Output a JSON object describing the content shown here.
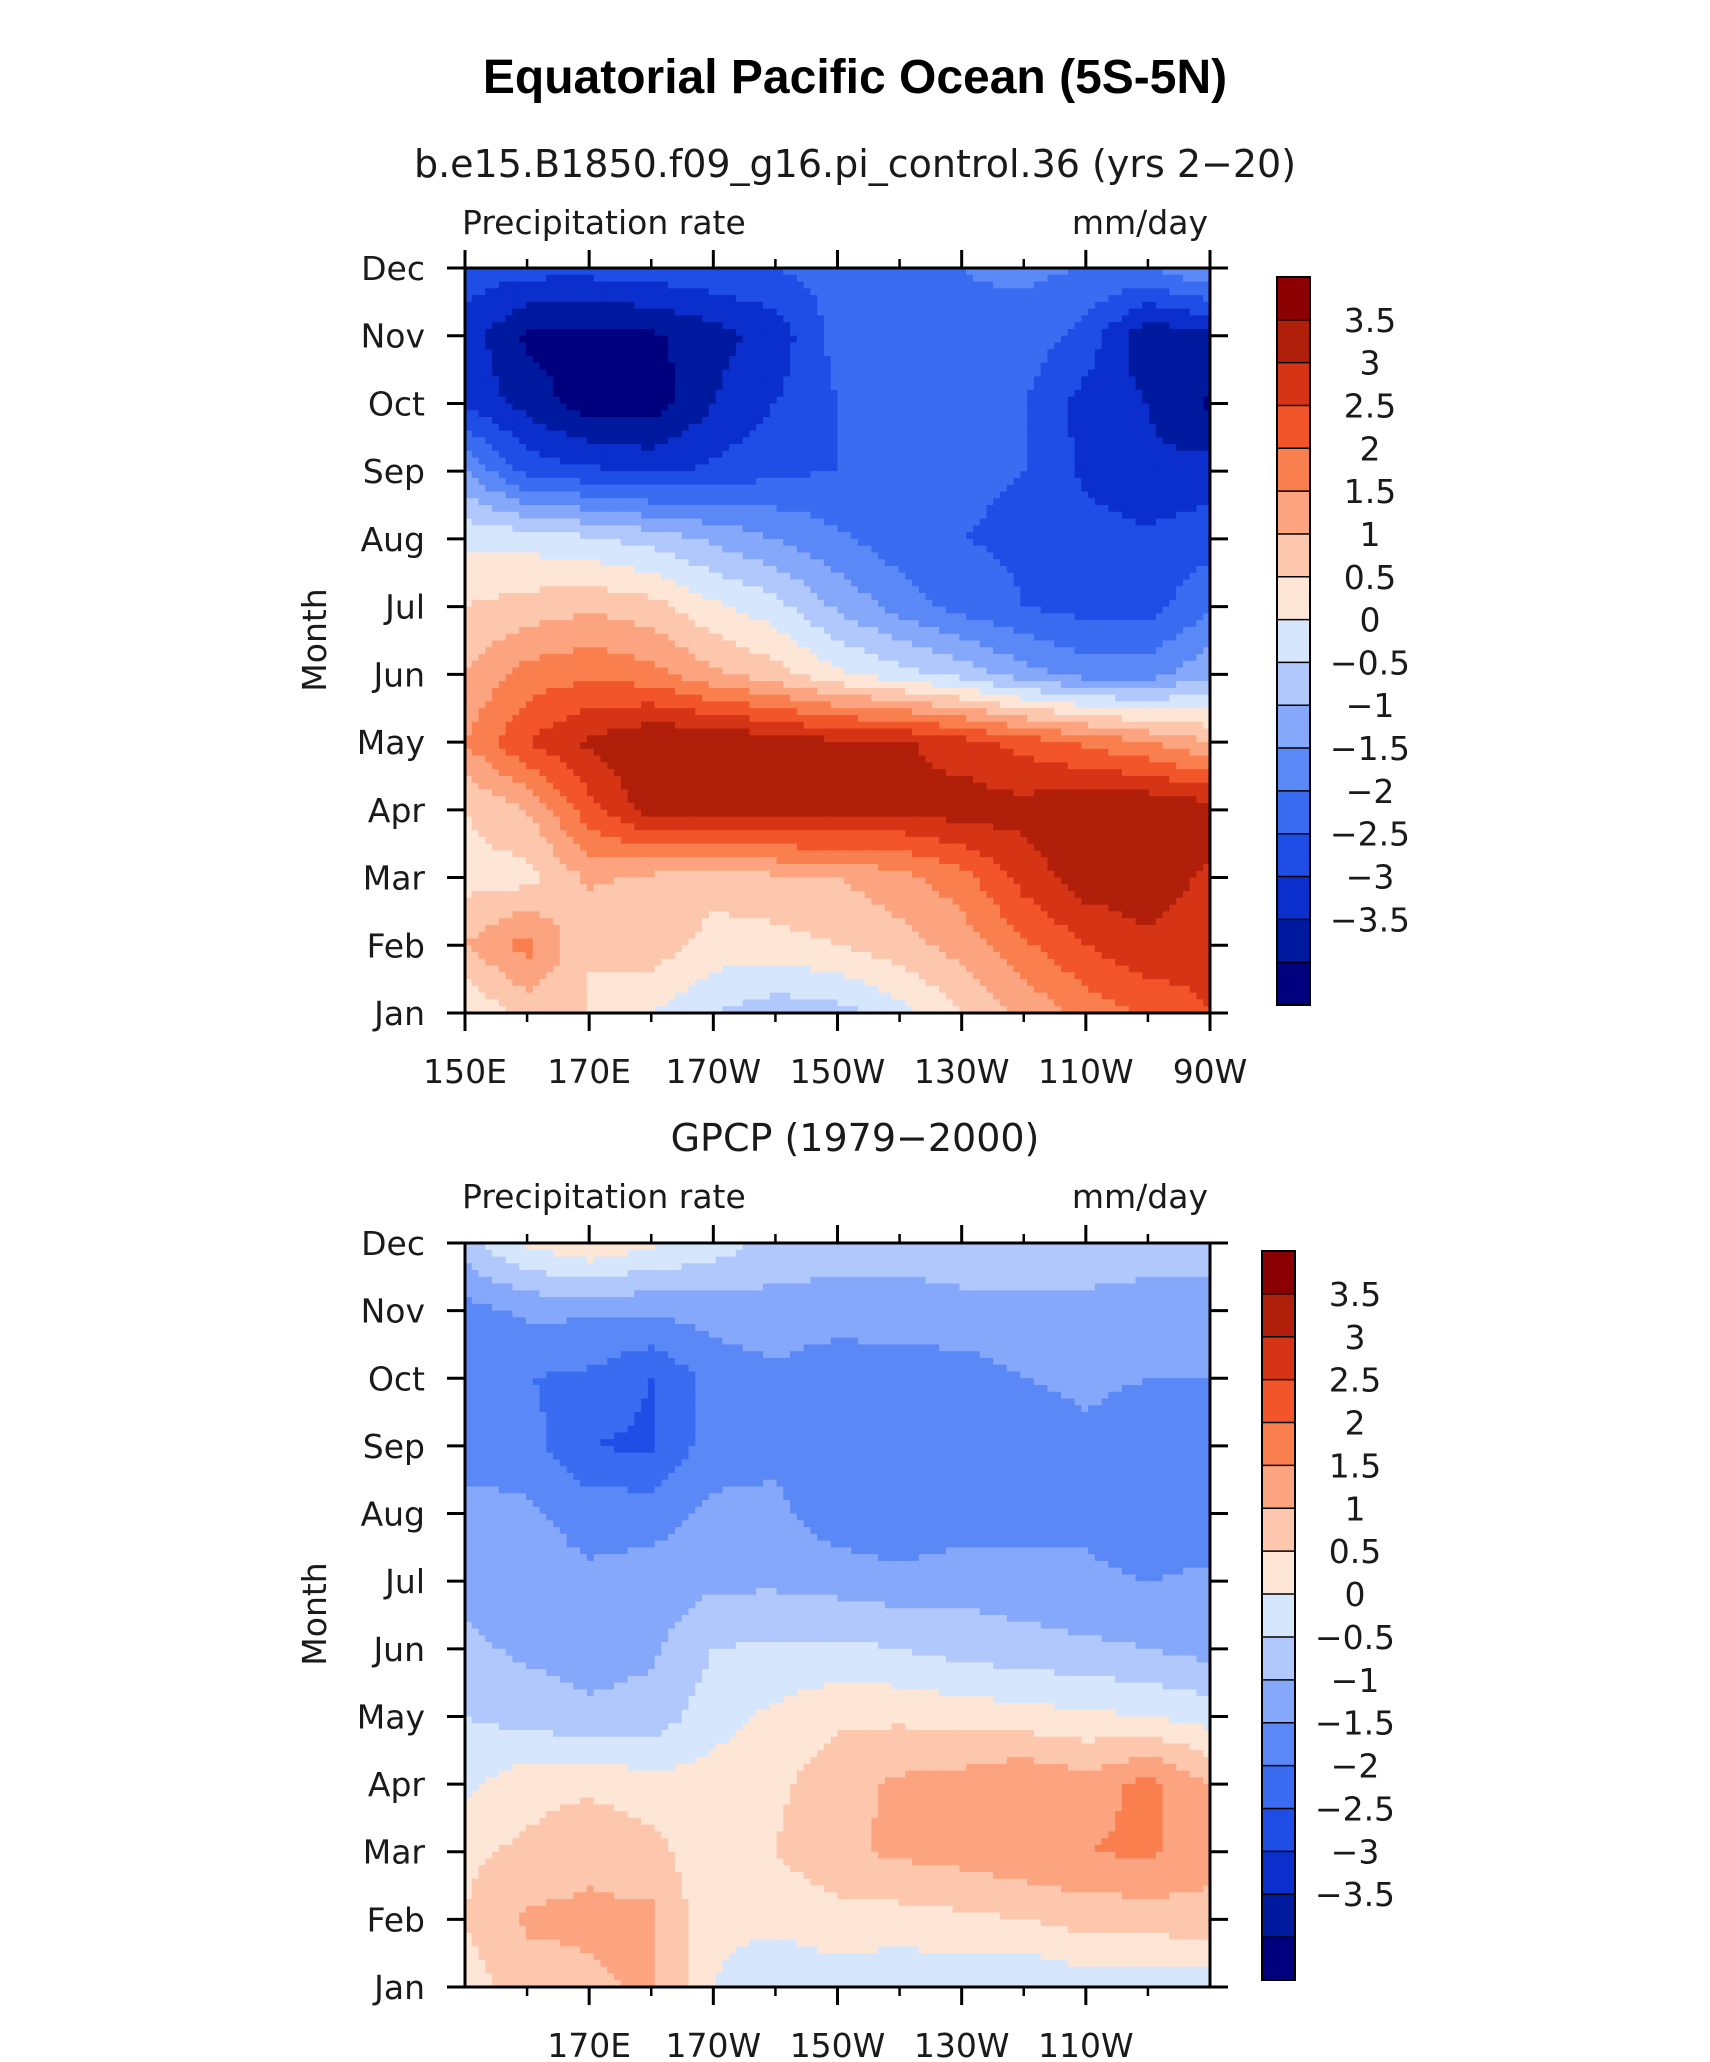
{
  "figure_title": "Equatorial Pacific Ocean (5S-5N)",
  "colors": {
    "levels_palette": [
      "#00007f",
      "#001a9f",
      "#0a2fcc",
      "#1f4ee6",
      "#3a6cf2",
      "#5a88f7",
      "#86a8fa",
      "#b0c8fc",
      "#d6e6fd",
      "#fde6d6",
      "#fdc7ad",
      "#fca47f",
      "#f97f4f",
      "#f2552a",
      "#d63515",
      "#b01f0a",
      "#8b0000"
    ]
  },
  "chart_data": [
    {
      "type": "heatmap",
      "title": "b.e15.B1850.f09_g16.pi_control.36 (yrs 2−20)",
      "left_label": "Precipitation rate",
      "right_label": "mm/day",
      "ylabel": "Month",
      "x_tick_labels": [
        "150E",
        "170E",
        "170W",
        "150W",
        "130W",
        "110W",
        "90W"
      ],
      "y_tick_labels": [
        "Jan",
        "Feb",
        "Mar",
        "Apr",
        "May",
        "Jun",
        "Jul",
        "Aug",
        "Sep",
        "Oct",
        "Nov",
        "Dec"
      ],
      "colorbar_labels": [
        "3.5",
        "3",
        "2.5",
        "2",
        "1.5",
        "1",
        "0.5",
        "0",
        "−0.5",
        "−1",
        "−1.5",
        "−2",
        "−2.5",
        "−3",
        "−3.5"
      ],
      "levels": [
        -3.5,
        -3,
        -2.5,
        -2,
        -1.5,
        -1,
        -0.5,
        0,
        0.5,
        1,
        1.5,
        2,
        2.5,
        3,
        3.5
      ],
      "x": [
        150,
        160,
        170,
        180,
        190,
        200,
        210,
        220,
        230,
        240,
        250,
        260,
        270
      ],
      "y": [
        1,
        2,
        3,
        4,
        5,
        6,
        7,
        8,
        9,
        10,
        11,
        12
      ],
      "z": [
        [
          0.5,
          1.2,
          1.0,
          0.5,
          0.0,
          -0.3,
          -0.2,
          0.3,
          1.0,
          1.6,
          2.2,
          2.6,
          3.0
        ],
        [
          1.5,
          2.2,
          1.0,
          1.3,
          0.8,
          0.8,
          1.0,
          1.3,
          1.7,
          2.4,
          3.0,
          3.4,
          3.2
        ],
        [
          0.8,
          0.8,
          1.6,
          1.4,
          1.2,
          1.4,
          1.5,
          1.8,
          2.3,
          3.2,
          3.8,
          3.8,
          3.4
        ],
        [
          1.0,
          1.5,
          2.8,
          3.8,
          3.8,
          3.8,
          3.8,
          3.6,
          3.8,
          3.7,
          4.0,
          4.0,
          3.8
        ],
        [
          2.0,
          3.0,
          3.6,
          4.0,
          4.0,
          3.8,
          3.6,
          3.6,
          3.2,
          2.8,
          2.4,
          2.0,
          1.5
        ],
        [
          1.5,
          2.2,
          2.4,
          2.2,
          1.6,
          1.2,
          0.6,
          0.2,
          -0.2,
          -0.8,
          -1.2,
          -1.2,
          -0.6
        ],
        [
          1.0,
          1.2,
          1.4,
          1.2,
          0.6,
          0.2,
          -0.6,
          -1.2,
          -1.7,
          -2.0,
          -2.2,
          -2.2,
          -1.6
        ],
        [
          0.4,
          0.3,
          0.1,
          -0.2,
          -0.6,
          -1.0,
          -1.4,
          -1.8,
          -2.0,
          -2.1,
          -2.3,
          -2.4,
          -2.2
        ],
        [
          -1.0,
          -2.2,
          -2.4,
          -2.6,
          -2.4,
          -2.1,
          -2.0,
          -1.9,
          -1.9,
          -2.0,
          -2.6,
          -2.9,
          -2.8
        ],
        [
          -2.6,
          -3.2,
          -3.8,
          -3.8,
          -3.0,
          -2.5,
          -2.0,
          -1.9,
          -1.8,
          -2.0,
          -2.7,
          -3.0,
          -3.6
        ],
        [
          -2.7,
          -3.6,
          -3.7,
          -3.6,
          -3.2,
          -2.8,
          -1.8,
          -1.7,
          -1.6,
          -1.7,
          -2.2,
          -3.4,
          -3.1
        ],
        [
          -2.2,
          -2.3,
          -2.3,
          -2.2,
          -2.1,
          -2.0,
          -1.8,
          -1.7,
          -1.5,
          -1.4,
          -1.5,
          -1.5,
          -1.0
        ]
      ]
    },
    {
      "type": "heatmap",
      "title": "GPCP (1979−2000)",
      "left_label": "Precipitation rate",
      "right_label": "mm/day",
      "ylabel": "Month",
      "x_tick_labels": [
        "170E",
        "170W",
        "150W",
        "130W",
        "110W"
      ],
      "y_tick_labels": [
        "Jan",
        "Feb",
        "Mar",
        "Apr",
        "May",
        "Jun",
        "Jul",
        "Aug",
        "Sep",
        "Oct",
        "Nov",
        "Dec"
      ],
      "colorbar_labels": [
        "3.5",
        "3",
        "2.5",
        "2",
        "1.5",
        "1",
        "0.5",
        "0",
        "−0.5",
        "−1",
        "−1.5",
        "−2",
        "−2.5",
        "−3",
        "−3.5"
      ],
      "levels": [
        -3.5,
        -3,
        -2.5,
        -2,
        -1.5,
        -1,
        -0.5,
        0,
        0.5,
        1,
        1.5,
        2,
        2.5,
        3,
        3.5
      ],
      "x": [
        150,
        160,
        170,
        180,
        190,
        200,
        210,
        220,
        230,
        240,
        250,
        260,
        270
      ],
      "y": [
        1,
        2,
        3,
        4,
        5,
        6,
        7,
        8,
        9,
        10,
        11,
        12
      ],
      "z": [
        [
          0.8,
          1.2,
          1.4,
          1.6,
          0.5,
          0.2,
          0.2,
          0.1,
          0.1,
          0.0,
          0.2,
          0.2,
          0.2
        ],
        [
          1.0,
          1.6,
          1.6,
          1.6,
          0.6,
          0.6,
          0.8,
          0.8,
          0.9,
          1.0,
          1.2,
          1.2,
          1.4
        ],
        [
          0.9,
          1.1,
          1.4,
          1.2,
          0.6,
          1.0,
          1.4,
          1.6,
          1.7,
          1.9,
          2.0,
          2.1,
          1.6
        ],
        [
          0.4,
          0.8,
          0.9,
          0.7,
          0.7,
          0.9,
          1.3,
          1.6,
          1.7,
          2.0,
          1.7,
          2.2,
          1.5
        ],
        [
          0.0,
          -0.2,
          -0.4,
          -0.3,
          0.3,
          0.6,
          0.9,
          0.9,
          0.8,
          0.7,
          0.6,
          0.5,
          0.3
        ],
        [
          -0.4,
          -0.6,
          -0.7,
          -0.6,
          0.0,
          0.1,
          0.1,
          0.0,
          -0.2,
          -0.3,
          -0.4,
          -0.5,
          -0.7
        ],
        [
          -0.6,
          -0.8,
          -0.9,
          -0.8,
          -0.6,
          -0.6,
          -0.7,
          -0.8,
          -0.7,
          -0.8,
          -0.9,
          -1.0,
          -0.9
        ],
        [
          -0.7,
          -0.9,
          -1.2,
          -1.2,
          -0.9,
          -0.9,
          -1.3,
          -1.5,
          -1.3,
          -1.2,
          -1.1,
          -1.4,
          -1.3
        ],
        [
          -1.4,
          -1.3,
          -2.0,
          -2.1,
          -1.2,
          -1.1,
          -1.4,
          -1.5,
          -1.5,
          -1.3,
          -1.1,
          -1.3,
          -1.4
        ],
        [
          -1.3,
          -1.5,
          -1.6,
          -2.0,
          -1.3,
          -1.1,
          -1.4,
          -1.3,
          -1.3,
          -1.0,
          -0.9,
          -1.0,
          -1.0
        ],
        [
          -1.2,
          -0.9,
          -0.9,
          -0.9,
          -0.8,
          -0.7,
          -0.7,
          -0.7,
          -0.6,
          -0.6,
          -0.6,
          -0.6,
          -0.6
        ],
        [
          -0.2,
          0.6,
          1.0,
          0.6,
          0.3,
          -0.2,
          -0.3,
          -0.3,
          -0.3,
          -0.3,
          -0.3,
          -0.4,
          -0.4
        ]
      ]
    }
  ]
}
